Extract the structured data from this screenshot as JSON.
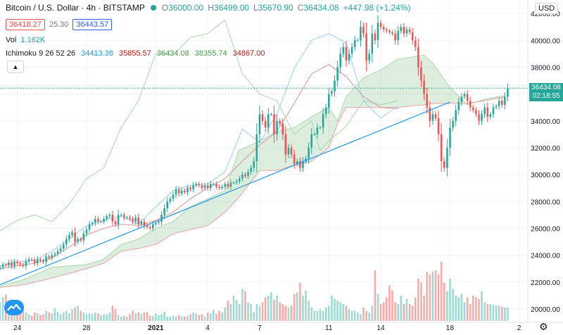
{
  "header": {
    "symbol_title": "Bitcoin / U.S. Dollar · 4h · BITSTAMP",
    "ohlc": [
      {
        "label": "O",
        "value": "36000.00"
      },
      {
        "label": "H",
        "value": "36499.00"
      },
      {
        "label": "L",
        "value": "35670.90"
      },
      {
        "label": "C",
        "value": "36434.08"
      }
    ],
    "change": "+447.98 (+1.24%)",
    "bid": "36418.27",
    "spread": "25.30",
    "ask": "36443.57",
    "volume_label": "Vol",
    "volume_value": "1.162K",
    "ichimoku_label": "Ichimoku 9 26 52 26",
    "ichimoku_values": [
      "34413.38",
      "35855.57",
      "36434.08",
      "38355.74",
      "34867.00"
    ],
    "currency": "USD",
    "current_price_tag": "36434.08",
    "countdown_tag": "02:18:55"
  },
  "colors": {
    "up": "#26a69a",
    "down": "#ef5350",
    "conversion": "#2196f3",
    "base": "#b71c1c",
    "lagging": "#43a047",
    "spanA": "#a5d6a7",
    "spanB": "#ef9a9a",
    "trendline": "#2196f3",
    "ichi_val_colors": [
      "#2196f3",
      "#b71c1c",
      "#43a047",
      "#43a047",
      "#b71c1c"
    ]
  },
  "chart_data": {
    "type": "candlestick",
    "title": "Bitcoin / U.S. Dollar · 4h · BITSTAMP",
    "ylim": [
      19000,
      43000
    ],
    "y_ticks": [
      "42000.00",
      "40000.00",
      "38000.00",
      "36000.00",
      "34000.00",
      "32000.00",
      "30000.00",
      "28000.00",
      "26000.00",
      "24000.00",
      "22000.00",
      "20000.00"
    ],
    "y_tick_values": [
      42000,
      40000,
      38000,
      36000,
      34000,
      32000,
      30000,
      28000,
      26000,
      24000,
      22000,
      20000
    ],
    "x_ticks": [
      "24",
      "28",
      "2021",
      "4",
      "7",
      "11",
      "14",
      "18",
      "2"
    ],
    "x_tick_days": [
      0,
      4,
      8,
      11,
      14,
      18,
      21,
      25,
      29
    ],
    "days_range": [
      -1.0,
      29.5
    ],
    "candle_day_start": -1.0,
    "candle_day_step": 0.1667,
    "closes": [
      23100,
      23300,
      23250,
      23450,
      23200,
      23500,
      23400,
      23300,
      23200,
      23550,
      23700,
      23650,
      23400,
      23700,
      23600,
      23500,
      23900,
      23800,
      24000,
      24100,
      24300,
      24500,
      24800,
      25200,
      25500,
      25700,
      25000,
      25200,
      25100,
      25600,
      25900,
      26300,
      26400,
      26700,
      26500,
      26500,
      26700,
      26900,
      27000,
      26500,
      26300,
      27000,
      27000,
      26800,
      26800,
      26700,
      26500,
      26800,
      26300,
      26500,
      26200,
      26100,
      26000,
      26300,
      26400,
      26500,
      27000,
      27500,
      28000,
      28200,
      28500,
      28900,
      28600,
      28800,
      28700,
      29000,
      28900,
      29200,
      29300,
      29200,
      29000,
      29200,
      29000,
      29300,
      29300,
      29100,
      29000,
      29100,
      29300,
      29100,
      29400,
      29400,
      29500,
      29700,
      30000,
      29900,
      30200,
      30500,
      31000,
      33000,
      34500,
      34000,
      33500,
      34500,
      34500,
      33000,
      34000,
      33800,
      33000,
      31500,
      32000,
      31500,
      30800,
      31000,
      30500,
      31000,
      31200,
      32000,
      33000,
      33000,
      33500,
      33500,
      34500,
      35000,
      36000,
      36200,
      37000,
      38000,
      39000,
      39500,
      38500,
      39000,
      39500,
      40000,
      40000,
      41000,
      40500,
      38500,
      39000,
      40500,
      40000,
      41300,
      41000,
      40800,
      40700,
      40600,
      40500,
      40000,
      40700,
      41000,
      40500,
      40800,
      40600,
      40000,
      39500,
      38000,
      37000,
      36000,
      35000,
      34000,
      34500,
      34200,
      33000,
      31000,
      30500,
      32000,
      33500,
      34000,
      34800,
      35400,
      35800,
      36000,
      35500,
      35000,
      34800,
      34500,
      34000,
      34500,
      35000,
      34300,
      34500,
      35000,
      35100,
      35500,
      35200,
      35800,
      36434
    ],
    "volumes": [
      0.22,
      0.28,
      0.31,
      0.18,
      0.19,
      0.12,
      0.15,
      0.18,
      0.12,
      0.1,
      0.08,
      0.06,
      0.1,
      0.09,
      0.07,
      0.08,
      0.12,
      0.1,
      0.09,
      0.15,
      0.11,
      0.08,
      0.1,
      0.12,
      0.09,
      0.14,
      0.16,
      0.18,
      0.12,
      0.1,
      0.08,
      0.09,
      0.08,
      0.1,
      0.09,
      0.07,
      0.08,
      0.08,
      0.1,
      0.18,
      0.14,
      0.07,
      0.05,
      0.06,
      0.05,
      0.08,
      0.12,
      0.09,
      0.1,
      0.08,
      0.1,
      0.1,
      0.06,
      0.06,
      0.09,
      0.07,
      0.08,
      0.11,
      0.05,
      0.05,
      0.06,
      0.05,
      0.07,
      0.05,
      0.05,
      0.06,
      0.08,
      0.1,
      0.09,
      0.07,
      0.08,
      0.05,
      0.1,
      0.09,
      0.13,
      0.08,
      0.12,
      0.1,
      0.16,
      0.24,
      0.2,
      0.3,
      0.25,
      0.2,
      0.38,
      0.35,
      0.22,
      0.2,
      0.1,
      0.2,
      0.18,
      0.22,
      0.28,
      0.3,
      0.34,
      0.25,
      0.3,
      0.22,
      0.2,
      0.18,
      0.16,
      0.18,
      0.32,
      0.34,
      0.45,
      0.3,
      0.36,
      0.24,
      0.16,
      0.12,
      0.12,
      0.14,
      0.12,
      0.16,
      0.18,
      0.3,
      0.26,
      0.24,
      0.22,
      0.2,
      0.18,
      0.14,
      0.12,
      0.12,
      0.1,
      0.08,
      0.16,
      0.12,
      0.1,
      0.18,
      0.6,
      0.32,
      0.2,
      0.22,
      0.28,
      0.42,
      0.36,
      0.22,
      0.2,
      0.3,
      0.2,
      0.26,
      0.2,
      0.18,
      0.28,
      0.5,
      0.46,
      0.3,
      0.58,
      0.55,
      0.58,
      0.6,
      0.55,
      0.7,
      0.45,
      0.35,
      0.5,
      0.38,
      0.3,
      0.28,
      0.32,
      0.22,
      0.28,
      0.2,
      0.3,
      0.28,
      0.26,
      0.35,
      0.22,
      0.2,
      0.2,
      0.19,
      0.18,
      0.18,
      0.17,
      0.16,
      0.16
    ],
    "trendline": {
      "x": [
        -1.0,
        25.0
      ],
      "y": [
        21800,
        35400
      ]
    },
    "span_a": {
      "x": [
        -1,
        0.4,
        2,
        4,
        5,
        6,
        7,
        8,
        9,
        10,
        11,
        12,
        12.8,
        14,
        15,
        16,
        17,
        18,
        18.5,
        19,
        20,
        21,
        22,
        23.5,
        24,
        25,
        26,
        27,
        28.2
      ],
      "y": [
        21700,
        22200,
        23100,
        23300,
        23700,
        24800,
        25200,
        26000,
        26500,
        27600,
        28200,
        28800,
        31800,
        32500,
        33200,
        33500,
        34300,
        35000,
        34000,
        35800,
        37200,
        37800,
        38600,
        38900,
        38300,
        36500,
        35200,
        35600,
        35900
      ]
    },
    "span_b": {
      "x": [
        -1,
        0.4,
        2,
        4,
        5,
        6,
        7,
        8,
        9,
        10,
        11,
        12,
        12.8,
        14,
        15,
        16,
        17,
        18,
        18.5,
        19,
        20,
        21,
        22,
        23.5,
        24,
        25,
        26,
        27,
        28.2
      ],
      "y": [
        21600,
        21800,
        22300,
        23000,
        23400,
        24300,
        24500,
        24800,
        25600,
        25900,
        26200,
        27200,
        28300,
        30300,
        30300,
        30700,
        31000,
        32000,
        33800,
        35000,
        35000,
        35000,
        35000,
        35200,
        35300,
        35300,
        35300,
        35500,
        35800
      ]
    },
    "lagging_span": {
      "x": [
        -1,
        0,
        1,
        2,
        3,
        4,
        5,
        6,
        7,
        8,
        9,
        10,
        11,
        12,
        13,
        14,
        15,
        16,
        17,
        17.5,
        18,
        19,
        20,
        21,
        22
      ],
      "y": [
        25800,
        26600,
        27000,
        26500,
        27800,
        29700,
        30500,
        33500,
        35500,
        39000,
        38900,
        40200,
        40500,
        41500,
        37500,
        36000,
        35500,
        33000,
        34000,
        31800,
        32500,
        33600,
        35500,
        35200,
        35500
      ]
    },
    "conversion_line": {
      "x": [
        -1,
        0,
        1,
        2,
        3,
        4,
        5,
        6,
        7,
        8,
        9,
        10,
        11,
        12,
        13,
        14,
        15,
        16,
        17,
        18,
        19,
        20,
        21,
        22
      ],
      "y": [
        23200,
        23500,
        23600,
        24300,
        25200,
        26200,
        26600,
        26900,
        26300,
        27600,
        28800,
        29200,
        29300,
        30200,
        33400,
        32400,
        34500,
        37900,
        40000,
        40500,
        39800,
        35500,
        34200,
        35100
      ]
    },
    "base_line": {
      "x": [
        -1,
        0,
        1,
        2,
        3,
        4,
        5,
        6,
        7,
        8,
        9,
        10,
        11,
        12,
        13,
        14,
        15,
        16,
        17,
        18,
        19,
        20,
        21,
        22
      ],
      "y": [
        23000,
        23200,
        23400,
        23800,
        24600,
        25500,
        26000,
        26300,
        26200,
        26600,
        27200,
        28200,
        29000,
        29700,
        31000,
        32200,
        33200,
        35300,
        37500,
        38200,
        37300,
        35800,
        35000,
        34900
      ]
    }
  }
}
